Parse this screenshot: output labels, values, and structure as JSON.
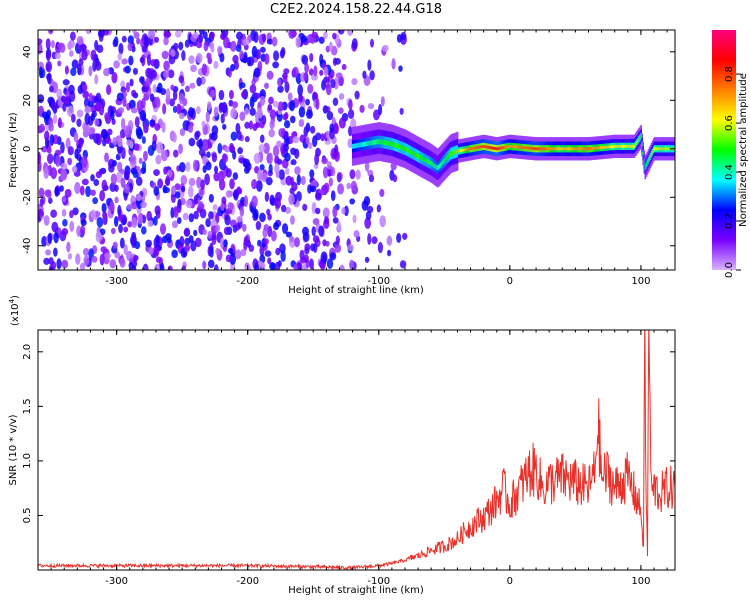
{
  "title": "C2E2.2024.158.22.44.G18",
  "chart_data": [
    {
      "type": "heatmap",
      "xlabel": "Height of straight line (km)",
      "ylabel": "Frequency (Hz)",
      "xlim": [
        -360,
        126
      ],
      "ylim": [
        -50,
        49
      ],
      "x_ticks": [
        -300,
        -200,
        -100,
        0,
        100
      ],
      "y_ticks": [
        -40,
        -20,
        0,
        20,
        40
      ],
      "colorbar": {
        "label": "Normalized spectral amplitude",
        "range": [
          0,
          0.98
        ],
        "ticks": [
          0.0,
          0.2,
          0.4,
          0.6,
          0.8
        ],
        "colormap": [
          "#d9b3ff",
          "#7a00ff",
          "#0000ff",
          "#00ffff",
          "#00ff00",
          "#ffff00",
          "#ff7f00",
          "#ff0000",
          "#ff0080"
        ]
      },
      "noise_region_x": [
        -360,
        -80
      ],
      "signal_track": [
        {
          "x": -120,
          "y": 1,
          "amp": 0.35
        },
        {
          "x": -110,
          "y": 2,
          "amp": 0.4
        },
        {
          "x": -100,
          "y": 3,
          "amp": 0.45
        },
        {
          "x": -90,
          "y": 2,
          "amp": 0.5
        },
        {
          "x": -80,
          "y": 0,
          "amp": 0.5
        },
        {
          "x": -70,
          "y": -3,
          "amp": 0.5
        },
        {
          "x": -60,
          "y": -6,
          "amp": 0.45
        },
        {
          "x": -55,
          "y": -8,
          "amp": 0.4
        },
        {
          "x": -50,
          "y": -5,
          "amp": 0.45
        },
        {
          "x": -45,
          "y": -2,
          "amp": 0.5
        },
        {
          "x": -40,
          "y": -1,
          "amp": 0.55
        },
        {
          "x": -30,
          "y": 0,
          "amp": 0.75
        },
        {
          "x": -20,
          "y": 1,
          "amp": 0.8
        },
        {
          "x": -10,
          "y": 0,
          "amp": 0.85
        },
        {
          "x": 0,
          "y": 1,
          "amp": 0.7
        },
        {
          "x": 20,
          "y": 0,
          "amp": 0.8
        },
        {
          "x": 40,
          "y": 0,
          "amp": 0.65
        },
        {
          "x": 60,
          "y": 0,
          "amp": 0.75
        },
        {
          "x": 80,
          "y": 1,
          "amp": 0.6
        },
        {
          "x": 95,
          "y": 1,
          "amp": 0.6
        },
        {
          "x": 100,
          "y": 5,
          "amp": 0.5
        },
        {
          "x": 103,
          "y": -8,
          "amp": 0.45
        },
        {
          "x": 110,
          "y": 0,
          "amp": 0.6
        },
        {
          "x": 126,
          "y": 0,
          "amp": 0.55
        }
      ]
    },
    {
      "type": "line",
      "xlabel": "Height of straight line (km)",
      "ylabel": "SNR (10 * v/v)",
      "y_multiplier": "(x10",
      "y_multiplier_exp": "4",
      "y_multiplier_close": ")",
      "xlim": [
        -360,
        126
      ],
      "ylim": [
        0,
        2.2
      ],
      "x_ticks": [
        -300,
        -200,
        -100,
        0,
        100
      ],
      "y_ticks": [
        0.5,
        1.0,
        1.5,
        2.0
      ],
      "y_tick_labels": [
        "0.5",
        "1.0",
        "1.5",
        "2.0"
      ],
      "color": "#e8312a",
      "series": [
        {
          "x": [
            -360,
            -300,
            -250,
            -200,
            -150,
            -120,
            -100,
            -90,
            -80,
            -70,
            -60,
            -50,
            -40,
            -35,
            -30,
            -25,
            -20,
            -15,
            -10,
            -5,
            0,
            5,
            10,
            15,
            20,
            25,
            30,
            40,
            50,
            60,
            65,
            67,
            70,
            75,
            80,
            85,
            90,
            95,
            100,
            102,
            103,
            104,
            105,
            106,
            108,
            110,
            115,
            120,
            126
          ],
          "y": [
            0.04,
            0.04,
            0.04,
            0.04,
            0.03,
            0.02,
            0.04,
            0.06,
            0.09,
            0.13,
            0.18,
            0.22,
            0.28,
            0.35,
            0.4,
            0.45,
            0.48,
            0.55,
            0.63,
            0.75,
            0.6,
            0.7,
            0.8,
            0.9,
            0.92,
            0.75,
            0.8,
            0.85,
            0.8,
            0.75,
            0.9,
            1.4,
            0.85,
            0.88,
            0.75,
            0.8,
            0.85,
            0.7,
            0.55,
            0.2,
            2.2,
            0.6,
            0.15,
            2.2,
            0.7,
            0.75,
            0.7,
            0.75,
            0.75
          ]
        }
      ]
    }
  ]
}
